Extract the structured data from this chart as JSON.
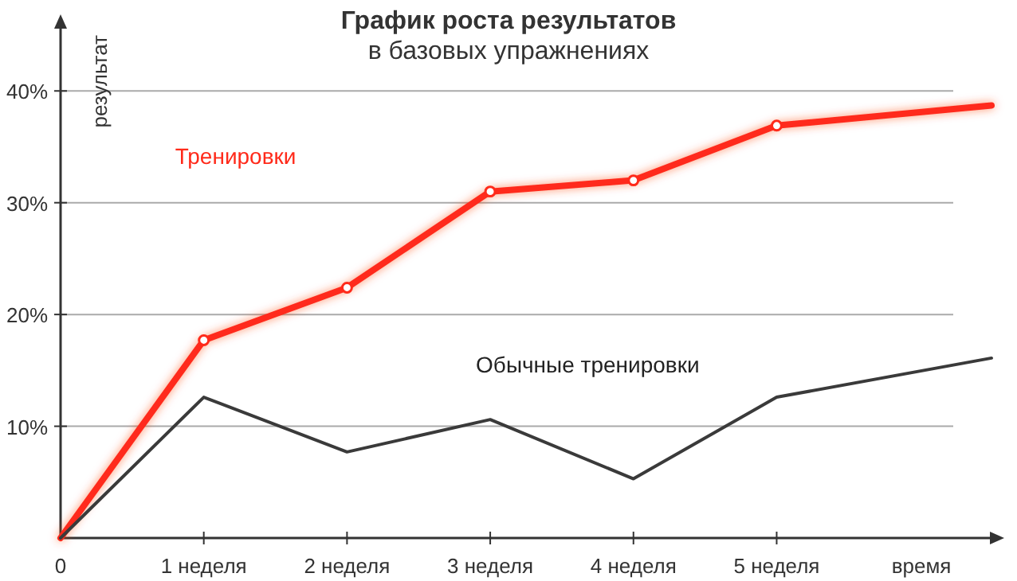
{
  "chart_data": {
    "type": "line",
    "title": "График роста результатов",
    "subtitle": "в базовых упражнениях",
    "xlabel": "время",
    "ylabel": "результат",
    "xlim": [
      0,
      6.5
    ],
    "ylim": [
      0,
      46
    ],
    "xticks": [
      {
        "value": 0,
        "label": "0"
      },
      {
        "value": 1,
        "label": "1 неделя"
      },
      {
        "value": 2,
        "label": "2 неделя"
      },
      {
        "value": 3,
        "label": "3 неделя"
      },
      {
        "value": 4,
        "label": "4 неделя"
      },
      {
        "value": 5,
        "label": "5 неделя"
      }
    ],
    "yticks": [
      {
        "value": 10,
        "label": "10%"
      },
      {
        "value": 20,
        "label": "20%"
      },
      {
        "value": 30,
        "label": "30%"
      },
      {
        "value": 40,
        "label": "40%"
      }
    ],
    "grid": "y",
    "legend": false,
    "series": [
      {
        "name": "Тренировки",
        "color": "#ff2a1a",
        "marker": "circle",
        "x": [
          0,
          1,
          2,
          3,
          4,
          5,
          6.5
        ],
        "values": [
          0,
          17.7,
          22.4,
          31.0,
          32.0,
          36.9,
          38.7
        ]
      },
      {
        "name": "Обычные тренировки",
        "color": "#3a3a3a",
        "marker": "none",
        "x": [
          0,
          1,
          2,
          3,
          4,
          5,
          6.5
        ],
        "values": [
          0,
          12.6,
          7.7,
          10.6,
          5.3,
          12.6,
          16.1
        ]
      }
    ]
  }
}
